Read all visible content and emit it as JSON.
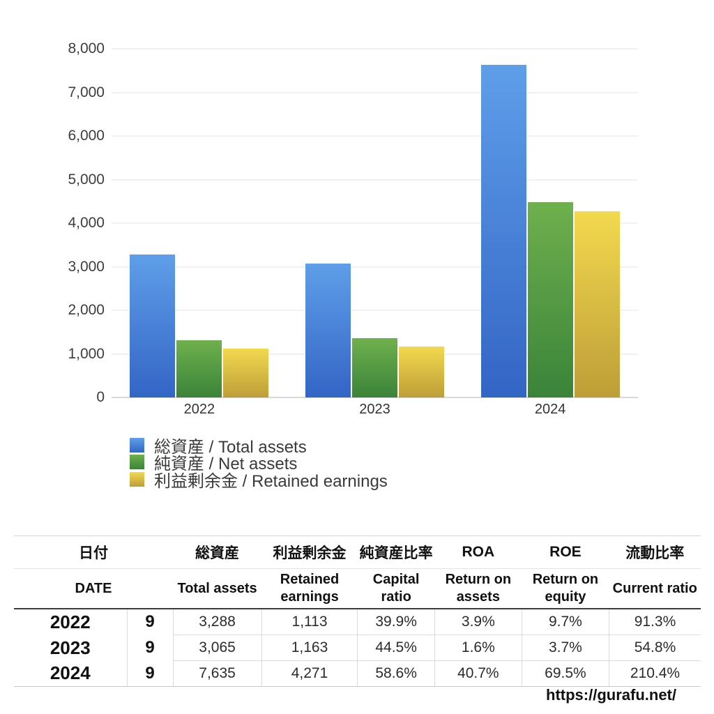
{
  "chart_data": {
    "type": "bar",
    "title": "",
    "xlabel": "",
    "ylabel": "",
    "categories": [
      "2022",
      "2023",
      "2024"
    ],
    "series": [
      {
        "name": "総資産 / Total assets",
        "color_top": "#5f9ee9",
        "color_bottom": "#3365c5",
        "values": [
          3288,
          3065,
          7635
        ]
      },
      {
        "name": "純資産 / Net assets",
        "color_top": "#6fb04e",
        "color_bottom": "#3a8339",
        "values": [
          1312,
          1364,
          4474
        ]
      },
      {
        "name": "利益剰余金 / Retained earnings",
        "color_top": "#f3d94f",
        "color_bottom": "#bd9e38",
        "values": [
          1113,
          1163,
          4271
        ]
      }
    ],
    "ylim": [
      0,
      8000
    ],
    "y_ticks": [
      0,
      1000,
      2000,
      3000,
      4000,
      5000,
      6000,
      7000,
      8000
    ],
    "y_tick_labels": [
      "0",
      "1,000",
      "2,000",
      "3,000",
      "4,000",
      "5,000",
      "6,000",
      "7,000",
      "8,000"
    ],
    "grid": true,
    "legend_position": "bottom-left"
  },
  "table": {
    "header_jp": [
      "日付",
      "総資産",
      "利益剰余金",
      "純資産比率",
      "ROA",
      "ROE",
      "流動比率"
    ],
    "header_en": [
      "DATE",
      "Total assets",
      "Retained earnings",
      "Capital ratio",
      "Return on assets",
      "Return on equity",
      "Current ratio"
    ],
    "rows": [
      {
        "year": "2022",
        "month": "9",
        "cells": [
          "3,288",
          "1,113",
          "39.9%",
          "3.9%",
          "9.7%",
          "91.3%"
        ]
      },
      {
        "year": "2023",
        "month": "9",
        "cells": [
          "3,065",
          "1,163",
          "44.5%",
          "1.6%",
          "3.7%",
          "54.8%"
        ]
      },
      {
        "year": "2024",
        "month": "9",
        "cells": [
          "7,635",
          "4,271",
          "58.6%",
          "40.7%",
          "69.5%",
          "210.4%"
        ]
      }
    ]
  },
  "footer": {
    "url": "https://gurafu.net/"
  }
}
